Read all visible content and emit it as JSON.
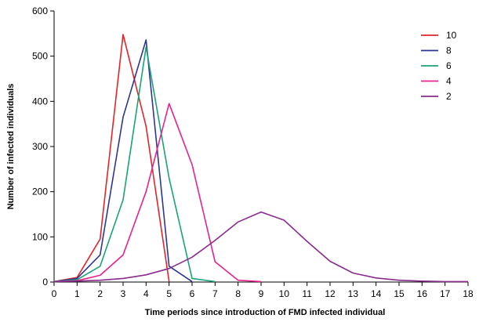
{
  "chart_data": {
    "type": "line",
    "title": "",
    "xlabel": "Time periods since introduction of FMD infected individual",
    "ylabel": "Number of infected individuals",
    "x": [
      0,
      1,
      2,
      3,
      4,
      5,
      6,
      7,
      8,
      9,
      10,
      11,
      12,
      13,
      14,
      15,
      16,
      17,
      18
    ],
    "xlim": [
      0,
      18
    ],
    "ylim": [
      0,
      600
    ],
    "yticks": [
      0,
      100,
      200,
      300,
      400,
      500,
      600
    ],
    "grid": false,
    "legend_position": "top-right",
    "series": [
      {
        "name": "10",
        "color": "#e0262a",
        "x": [
          0,
          1,
          2,
          3,
          4,
          5
        ],
        "values": [
          1,
          10,
          95,
          548,
          345,
          1
        ]
      },
      {
        "name": "8",
        "color": "#2e3592",
        "x": [
          0,
          1,
          2,
          3,
          4,
          5,
          6
        ],
        "values": [
          1,
          8,
          60,
          365,
          536,
          35,
          1
        ]
      },
      {
        "name": "6",
        "color": "#1aa27a",
        "x": [
          0,
          1,
          2,
          3,
          4,
          5,
          6,
          7
        ],
        "values": [
          1,
          5,
          35,
          182,
          520,
          230,
          8,
          1
        ]
      },
      {
        "name": "4",
        "color": "#e6228c",
        "x": [
          0,
          1,
          2,
          3,
          4,
          5,
          6,
          7,
          8,
          9
        ],
        "values": [
          1,
          3,
          15,
          60,
          200,
          395,
          260,
          45,
          4,
          1
        ]
      },
      {
        "name": "2",
        "color": "#8a2b8e",
        "x": [
          0,
          1,
          2,
          3,
          4,
          5,
          6,
          7,
          8,
          9,
          10,
          11,
          12,
          13,
          14,
          15,
          16,
          17,
          18
        ],
        "values": [
          1,
          2,
          4,
          8,
          16,
          30,
          55,
          92,
          133,
          155,
          137,
          90,
          46,
          20,
          9,
          4,
          2,
          1,
          1
        ]
      }
    ]
  }
}
